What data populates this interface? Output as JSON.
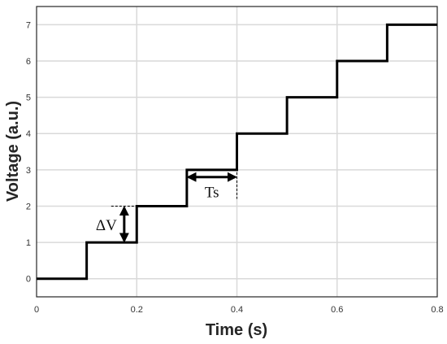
{
  "chart_data": {
    "type": "line",
    "step": "post",
    "xlabel": "Time (s)",
    "ylabel": "Voltage (a.u.)",
    "xlim": [
      0,
      0.8
    ],
    "ylim": [
      -0.5,
      7.5
    ],
    "xticks": [
      0,
      0.2,
      0.4,
      0.6,
      0.8
    ],
    "xtick_labels": [
      "0",
      "0.2",
      "0.4",
      "0.6",
      "0.8"
    ],
    "yticks": [
      0,
      1,
      2,
      3,
      4,
      5,
      6,
      7
    ],
    "ytick_labels": [
      "0",
      "1",
      "2",
      "3",
      "4",
      "5",
      "6",
      "7"
    ],
    "grid": true,
    "series": [
      {
        "x": [
          0,
          0.1,
          0.2,
          0.3,
          0.4,
          0.5,
          0.6,
          0.7,
          0.8
        ],
        "y": [
          0,
          1,
          2,
          3,
          4,
          5,
          6,
          7,
          7
        ],
        "color": "#000000"
      }
    ],
    "annotations": [
      {
        "text": "ΔV",
        "type": "vertical-arrow",
        "x": 0.175,
        "y_from": 1,
        "y_to": 2
      },
      {
        "text": "Ts",
        "type": "horizontal-arrow",
        "y": 2.8,
        "x_from": 0.3,
        "x_to": 0.4
      }
    ]
  }
}
